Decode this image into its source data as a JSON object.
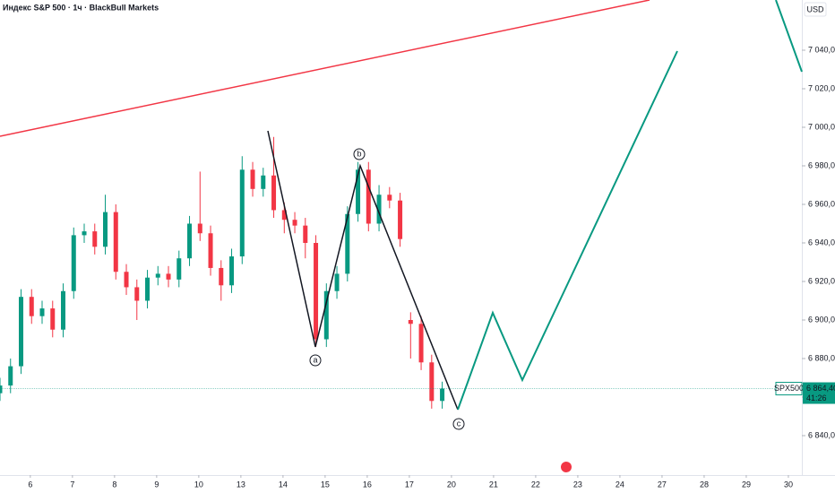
{
  "chart_data": {
    "type": "candlestick",
    "title": "Индекс S&P 500 · 1ч · BlackBull Markets",
    "currency": "USD",
    "x": [
      -0.72,
      -0.47,
      -0.22,
      0.03,
      0.28,
      0.53,
      0.78,
      1.03,
      1.28,
      1.53,
      1.78,
      2.03,
      2.28,
      2.53,
      2.78,
      3.03,
      3.28,
      3.53,
      3.78,
      4.03,
      4.28,
      4.53,
      4.78,
      5.03,
      5.28,
      5.53,
      5.78,
      6.03,
      6.28,
      6.53,
      6.78,
      7.03,
      7.28,
      7.53,
      7.78,
      8.03,
      8.28,
      8.53,
      8.78,
      9.03,
      9.28,
      9.53,
      9.78
    ],
    "open": [
      6862,
      6866,
      6876,
      6912,
      6902,
      6906,
      6895,
      6915,
      6944,
      6946,
      6938,
      6956,
      6925,
      6917,
      6910,
      6922,
      6924,
      6921,
      6932,
      6950,
      6945,
      6927,
      6918,
      6933,
      6978,
      6968,
      6975,
      6957,
      6952,
      6949,
      6940,
      6890,
      6915,
      6924,
      6955,
      6978,
      6950,
      6965,
      6962,
      6900,
      6898,
      6878,
      6858
    ],
    "high": [
      6870,
      6880,
      6916,
      6916,
      6910,
      6910,
      6919,
      6948,
      6950,
      6950,
      6965,
      6960,
      6929,
      6921,
      6926,
      6928,
      6928,
      6936,
      6954,
      6977,
      6949,
      6931,
      6937,
      6985,
      6982,
      6979,
      6995,
      6961,
      6956,
      6953,
      6944,
      6919,
      6928,
      6959,
      6982,
      6982,
      6970,
      6969,
      6966,
      6904,
      6902,
      6882,
      6868
    ],
    "low": [
      6858,
      6862,
      6872,
      6898,
      6898,
      6891,
      6891,
      6911,
      6940,
      6934,
      6934,
      6921,
      6913,
      6900,
      6906,
      6918,
      6917,
      6917,
      6928,
      6941,
      6923,
      6910,
      6914,
      6929,
      6964,
      6964,
      6953,
      6945,
      6945,
      6932,
      6886,
      6886,
      6911,
      6920,
      6951,
      6946,
      6946,
      6958,
      6938,
      6880,
      6874,
      6854,
      6854
    ],
    "close": [
      6866,
      6876,
      6912,
      6902,
      6906,
      6895,
      6915,
      6944,
      6946,
      6938,
      6956,
      6925,
      6917,
      6910,
      6922,
      6924,
      6921,
      6932,
      6950,
      6945,
      6927,
      6918,
      6933,
      6978,
      6968,
      6975,
      6957,
      6952,
      6949,
      6940,
      6890,
      6915,
      6924,
      6955,
      6978,
      6950,
      6965,
      6962,
      6942,
      6898,
      6878,
      6858,
      6864.4
    ],
    "up_color": "#089981",
    "down_color": "#f23645",
    "xlim": [
      -0.72,
      18.32
    ],
    "xticks": [
      {
        "value": 0,
        "label": "6"
      },
      {
        "value": 1,
        "label": "7"
      },
      {
        "value": 2,
        "label": "8"
      },
      {
        "value": 3,
        "label": "9"
      },
      {
        "value": 4,
        "label": "10"
      },
      {
        "value": 5,
        "label": "13"
      },
      {
        "value": 6,
        "label": "14"
      },
      {
        "value": 7,
        "label": "15"
      },
      {
        "value": 8,
        "label": "16"
      },
      {
        "value": 9,
        "label": "17"
      },
      {
        "value": 10,
        "label": "20"
      },
      {
        "value": 11,
        "label": "21"
      },
      {
        "value": 12,
        "label": "22"
      },
      {
        "value": 13,
        "label": "23"
      },
      {
        "value": 14,
        "label": "24"
      },
      {
        "value": 15,
        "label": "27"
      },
      {
        "value": 16,
        "label": "28"
      },
      {
        "value": 17,
        "label": "29"
      },
      {
        "value": 18,
        "label": "30"
      }
    ],
    "ylim": [
      6819.53,
      7066.05
    ],
    "yticks": [
      {
        "value": 6840,
        "label": "6 840,00"
      },
      {
        "value": 6860,
        "label": "6 860,00"
      },
      {
        "value": 6880,
        "label": "6 880,00"
      },
      {
        "value": 6900,
        "label": "6 900,00"
      },
      {
        "value": 6920,
        "label": "6 920,00"
      },
      {
        "value": 6940,
        "label": "6 940,00"
      },
      {
        "value": 6960,
        "label": "6 960,00"
      },
      {
        "value": 6980,
        "label": "6 980,00"
      },
      {
        "value": 7000,
        "label": "7 000,00"
      },
      {
        "value": 7020,
        "label": "7 020,00"
      },
      {
        "value": 7040,
        "label": "7 040,00"
      }
    ],
    "last_price": {
      "symbol": "SPX500",
      "value": 6864.4,
      "label": "6 864,40",
      "countdown": "41:26"
    },
    "wave_labels": [
      "a",
      "b",
      "c"
    ]
  }
}
